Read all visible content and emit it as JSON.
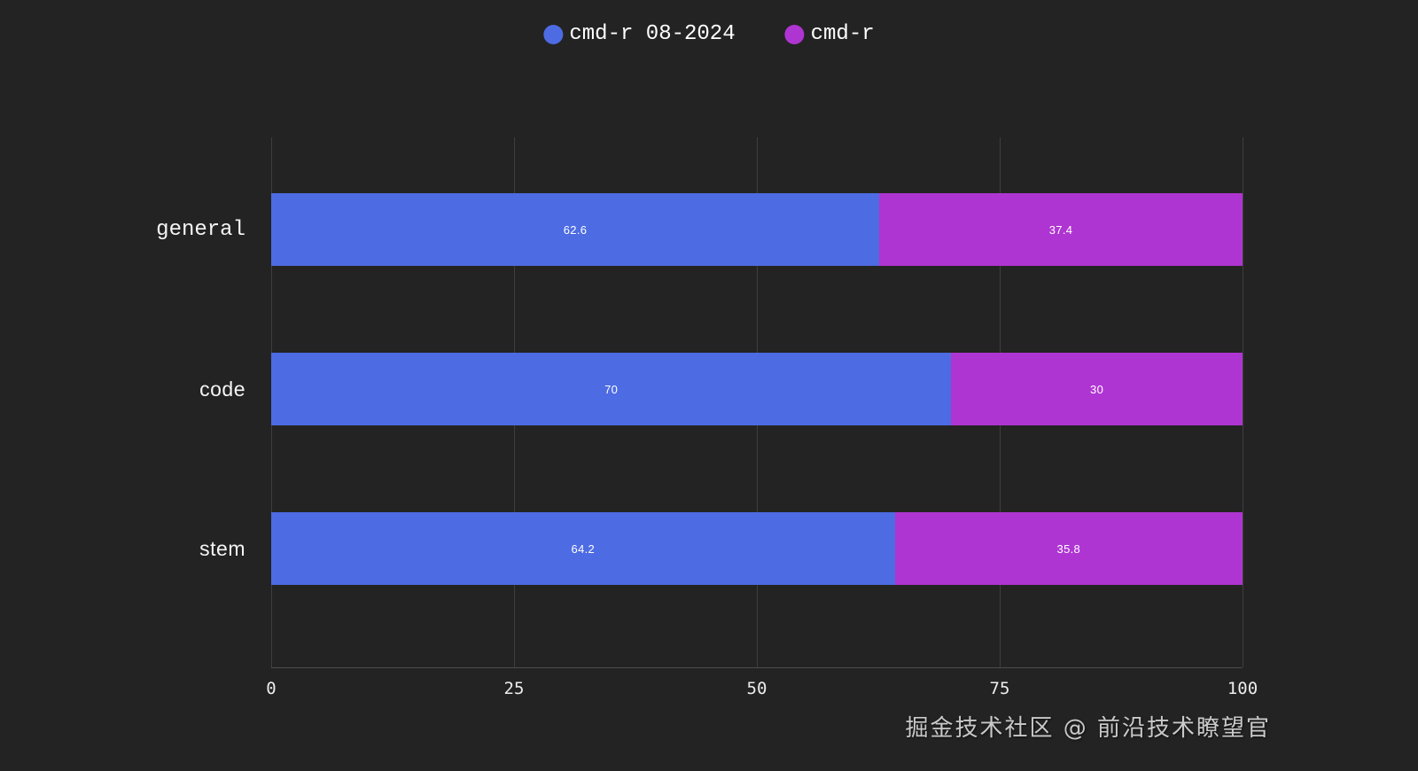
{
  "chart_data": {
    "type": "bar",
    "orientation": "horizontal",
    "stacked": true,
    "title": "",
    "categories": [
      "general",
      "code",
      "stem"
    ],
    "series": [
      {
        "name": "cmd-r 08-2024",
        "color": "#4d6be2",
        "values": [
          62.6,
          70,
          64.2
        ]
      },
      {
        "name": "cmd-r",
        "color": "#af35d2",
        "values": [
          37.4,
          30,
          35.8
        ]
      }
    ],
    "x_ticks": [
      "0",
      "25",
      "50",
      "75",
      "100"
    ],
    "xlim": [
      0,
      100
    ],
    "xlabel": "",
    "ylabel": "",
    "legend_position": "top-center",
    "grid": "vertical",
    "background_color": "#232323",
    "gridline_color": "#3e3e3e",
    "value_label_color": "#ffffff"
  },
  "watermark": {
    "text": "掘金技术社区 @ 前沿技术瞭望官"
  }
}
